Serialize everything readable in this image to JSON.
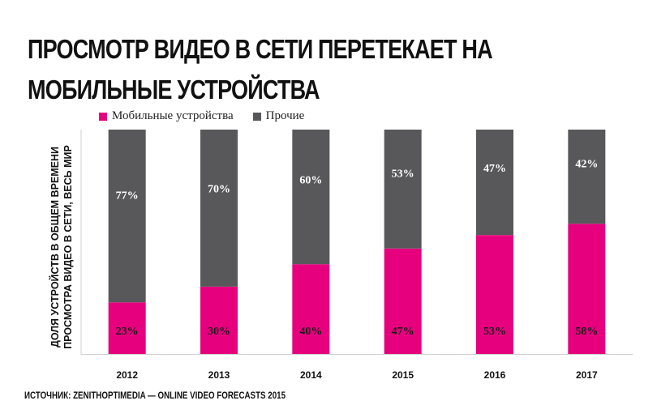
{
  "title": "ПРОСМОТР ВИДЕО В СЕТИ ПЕРЕТЕКАЕТ НА МОБИЛЬНЫЕ УСТРОЙСТВА",
  "source": "ИСТОЧНИК: ZENITHOPTIMEDIA — ONLINE VIDEO FORECASTS 2015",
  "colors": {
    "mobile": "#e6007e",
    "other": "#58585a"
  },
  "chart_data": {
    "type": "bar",
    "stacked": true,
    "title": "",
    "ylabel": "ДОЛЯ УСТРОЙСТВ В ОБЩЕМ ВРЕМЕНИ ПРОСМОТРА ВИДЕО В СЕТИ, ВЕСЬ МИР",
    "xlabel": "",
    "ylim": [
      0,
      100
    ],
    "categories": [
      "2012",
      "2013",
      "2014",
      "2015",
      "2016",
      "2017"
    ],
    "series": [
      {
        "name": "Мобильные устройства",
        "values": [
          23,
          30,
          40,
          47,
          53,
          58
        ],
        "labels": [
          "23%",
          "30%",
          "40%",
          "47%",
          "53%",
          "58%"
        ]
      },
      {
        "name": "Прочие",
        "values": [
          77,
          70,
          60,
          53,
          47,
          42
        ],
        "labels": [
          "77%",
          "70%",
          "60%",
          "53%",
          "47%",
          "42%"
        ]
      }
    ],
    "legend": "top-left",
    "grid": false
  }
}
